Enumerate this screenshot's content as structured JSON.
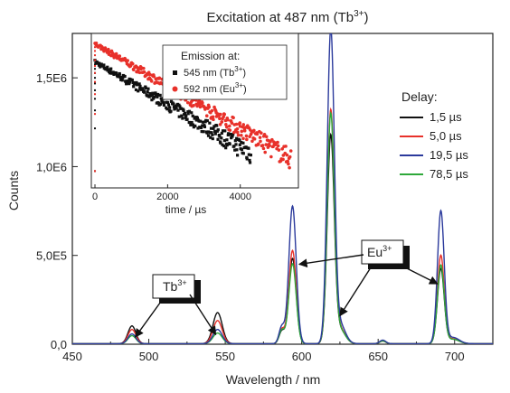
{
  "chart_data": [
    {
      "type": "line",
      "title": "Excitation at 487 nm (Tb",
      "title_sup": "3+",
      "title_tail": ")",
      "xlabel": "Wavelength / nm",
      "ylabel": "Counts",
      "xlim": [
        450,
        725
      ],
      "ylim": [
        0,
        1750000
      ],
      "xticks": [
        450,
        500,
        550,
        600,
        650,
        700
      ],
      "xtick_labels": [
        "450",
        "500",
        "550",
        "600",
        "650",
        "700"
      ],
      "yticks": [
        0,
        500000,
        1000000,
        1500000
      ],
      "ytick_labels": [
        "0,0",
        "5,0E5",
        "1,0E6",
        "1,5E6"
      ],
      "grid": false,
      "legend": {
        "title": "Delay:",
        "placement": "right"
      },
      "peaks": [
        {
          "center": 489,
          "width": 2.6
        },
        {
          "center": 545,
          "width": 3.0
        },
        {
          "center": 587,
          "width": 1.8
        },
        {
          "center": 594,
          "width": 2.4
        },
        {
          "center": 619,
          "width": 2.3
        },
        {
          "center": 625,
          "width": 3.5
        },
        {
          "center": 653,
          "width": 2.0
        },
        {
          "center": 691,
          "width": 2.2
        },
        {
          "center": 699,
          "width": 4.0
        }
      ],
      "series": [
        {
          "name": "1,5 µs",
          "color": "#111111",
          "amplitudes": [
            100000,
            175000,
            70000,
            480000,
            1160000,
            80000,
            15000,
            420000,
            25000
          ]
        },
        {
          "name": "5,0 µs",
          "color": "#e8312a",
          "amplitudes": [
            80000,
            130000,
            80000,
            525000,
            1300000,
            85000,
            15000,
            495000,
            28000
          ]
        },
        {
          "name": "19,5 µs",
          "color": "#2b3a9c",
          "amplitudes": [
            55000,
            80000,
            95000,
            775000,
            1750000,
            110000,
            20000,
            745000,
            35000
          ]
        },
        {
          "name": "78,5 µs",
          "color": "#2ea83a",
          "amplitudes": [
            45000,
            60000,
            75000,
            450000,
            1280000,
            80000,
            15000,
            440000,
            25000
          ]
        }
      ],
      "annotations": [
        {
          "label": "Tb",
          "sup": "3+",
          "points_to": [
            489,
            545
          ]
        },
        {
          "label": "Eu",
          "sup": "3+",
          "points_to": [
            594,
            625,
            691
          ]
        }
      ]
    },
    {
      "type": "scatter",
      "xlabel": "time / µs",
      "ylabel": "",
      "xlim": [
        -100,
        5600
      ],
      "xticks": [
        0,
        2000,
        4000
      ],
      "xtick_labels": [
        "0",
        "2000",
        "4000"
      ],
      "log_y": true,
      "legend": {
        "title": "Emission at:",
        "placement": "top-right"
      },
      "series": [
        {
          "name": "545 nm (Tb",
          "name_sup": "3+",
          "name_tail": ")",
          "color": "#111111",
          "marker": "square",
          "x_start": 0,
          "x_end": 4300,
          "y_start": 0.55,
          "y_end": 0.035
        },
        {
          "name": "592 nm (Eu",
          "name_sup": "3+",
          "name_tail": ")",
          "color": "#e8312a",
          "marker": "circle",
          "x_start": 0,
          "x_end": 5400,
          "y_start": 0.95,
          "y_end": 0.03
        }
      ]
    }
  ]
}
